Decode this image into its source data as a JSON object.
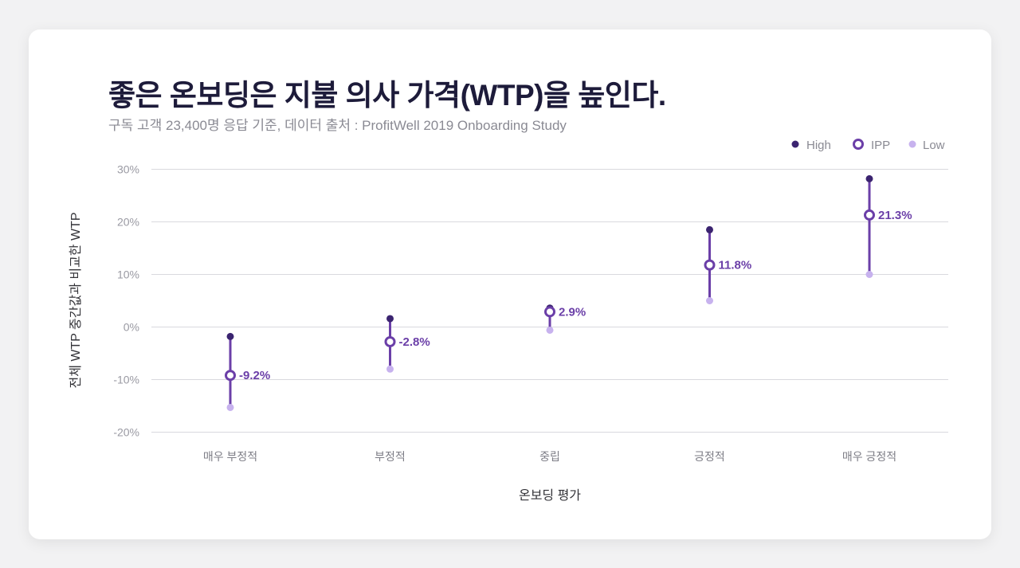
{
  "title": "좋은 온보딩은 지불 의사 가격(WTP)을 높인다.",
  "subtitle": "구독 고객 23,400명 응답 기준, 데이터 출처 : ProfitWell 2019 Onboarding Study",
  "colors": {
    "high": "#3b2470",
    "ipp": "#6b3fa8",
    "low": "#c7b2ee",
    "bar": "#6b3fa8",
    "grid": "#d9d9de"
  },
  "chart_data": {
    "type": "scatter",
    "categories": [
      "매우 부정적",
      "부정적",
      "중립",
      "긍정적",
      "매우 긍정적"
    ],
    "series": [
      {
        "name": "High",
        "values": [
          -1.8,
          1.6,
          3.6,
          18.5,
          28.2
        ]
      },
      {
        "name": "IPP",
        "values": [
          -9.2,
          -2.8,
          2.9,
          11.8,
          21.3
        ]
      },
      {
        "name": "Low",
        "values": [
          -15.3,
          -8.0,
          -0.6,
          5.0,
          10.0
        ]
      }
    ],
    "value_labels": [
      "-9.2%",
      "-2.8%",
      "2.9%",
      "11.8%",
      "21.3%"
    ],
    "yticks": [
      "-20%",
      "-10%",
      "0%",
      "10%",
      "20%",
      "30%"
    ],
    "ytick_values": [
      -20,
      -10,
      0,
      10,
      20,
      30
    ],
    "ylim": [
      -20,
      30
    ],
    "xlabel": "온보딩 평가",
    "ylabel": "전체 WTP 중간값과 비교한 WTP",
    "legend": [
      "High",
      "IPP",
      "Low"
    ],
    "legend_position": "top-right",
    "grid": true
  }
}
